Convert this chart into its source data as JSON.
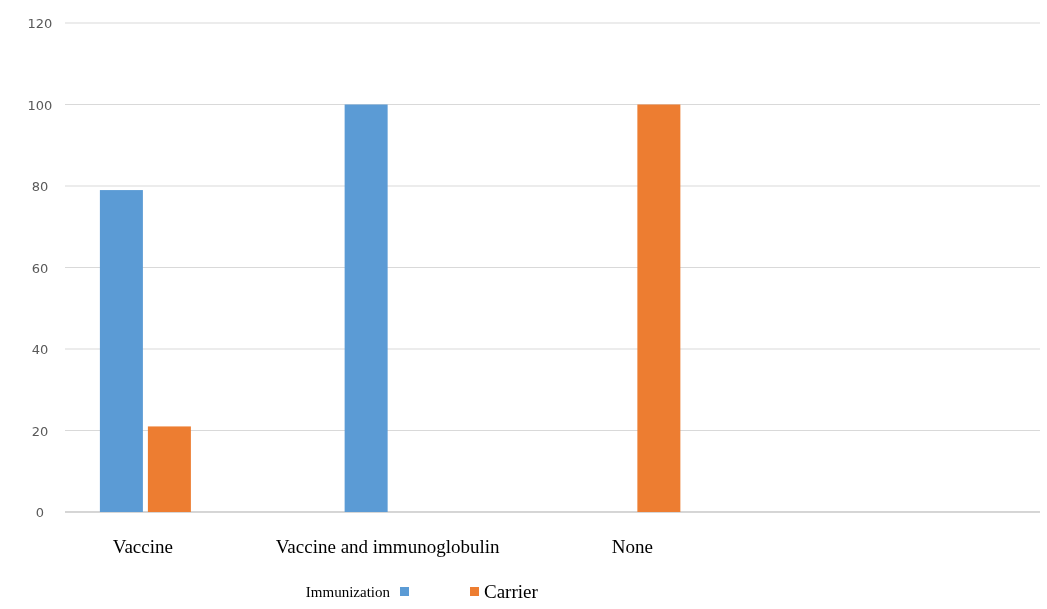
{
  "chart_data": {
    "type": "bar",
    "categories": [
      "Vaccine",
      "Vaccine and immunoglobulin",
      "None",
      null
    ],
    "series": [
      {
        "color": "#5b9bd5",
        "values": [
          79,
          100,
          0,
          null
        ]
      },
      {
        "name": "Carrier",
        "color": "#ed7d31",
        "values": [
          21,
          0,
          100,
          null
        ]
      }
    ],
    "ylim": [
      0,
      120
    ],
    "yticks": [
      0,
      20,
      40,
      60,
      80,
      100,
      120
    ],
    "grid": "y",
    "legend": "bottom",
    "xlabel": "Immunization"
  }
}
